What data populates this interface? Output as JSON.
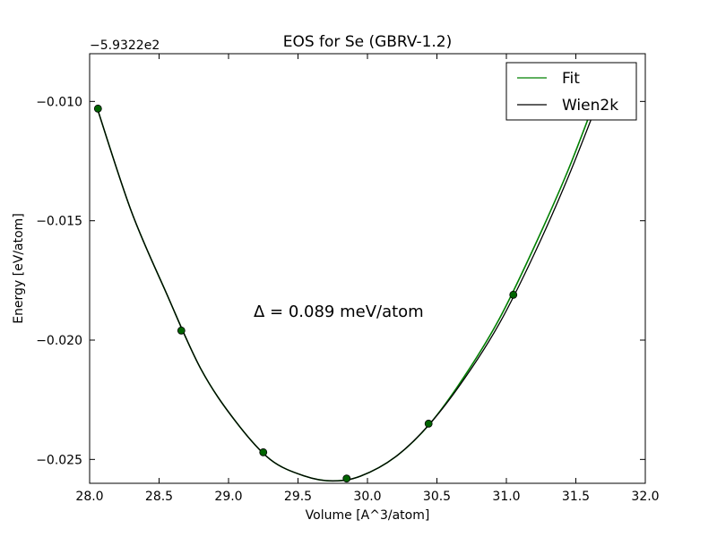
{
  "chart_data": {
    "type": "line",
    "title": "EOS for Se (GBRV-1.2)",
    "xlabel": "Volume [A^3/atom]",
    "ylabel": "Energy [eV/atom]",
    "offset_label": "−5.9322e2",
    "annotation": "Δ = 0.089 meV/atom",
    "xlim": [
      28.0,
      32.0
    ],
    "ylim": [
      -0.026,
      -0.008
    ],
    "xticks": [
      28.0,
      28.5,
      29.0,
      29.5,
      30.0,
      30.5,
      31.0,
      31.5,
      32.0
    ],
    "xtick_labels": [
      "28.0",
      "28.5",
      "29.0",
      "29.5",
      "30.0",
      "30.5",
      "31.0",
      "31.5",
      "32.0"
    ],
    "yticks": [
      -0.01,
      -0.015,
      -0.02,
      -0.025
    ],
    "ytick_labels": [
      "−0.010",
      "−0.015",
      "−0.020",
      "−0.025"
    ],
    "legend_position": "top-right",
    "grid": false,
    "series": [
      {
        "name": "Fit",
        "kind": "line",
        "color": "#008000",
        "x": [
          28.05,
          28.3,
          28.55,
          28.8,
          29.05,
          29.3,
          29.55,
          29.75,
          29.95,
          30.2,
          30.45,
          30.7,
          30.95,
          31.2,
          31.45,
          31.7
        ],
        "y": [
          -0.0102,
          -0.0146,
          -0.018,
          -0.0212,
          -0.0234,
          -0.025,
          -0.0257,
          -0.0259,
          -0.0257,
          -0.0249,
          -0.0235,
          -0.0215,
          -0.0191,
          -0.0161,
          -0.0128,
          -0.009
        ]
      },
      {
        "name": "Wien2k",
        "kind": "line",
        "color": "#000000",
        "x": [
          28.05,
          28.3,
          28.55,
          28.8,
          29.05,
          29.3,
          29.55,
          29.75,
          29.95,
          30.2,
          30.45,
          30.7,
          30.95,
          31.2,
          31.45,
          31.7
        ],
        "y": [
          -0.0102,
          -0.0146,
          -0.018,
          -0.0212,
          -0.0234,
          -0.025,
          -0.0257,
          -0.0259,
          -0.0257,
          -0.0249,
          -0.0235,
          -0.0216,
          -0.0193,
          -0.0164,
          -0.0131,
          -0.0094
        ]
      },
      {
        "kind": "scatter",
        "color": "#006400",
        "x": [
          28.06,
          28.66,
          29.25,
          29.85,
          30.44,
          31.05
        ],
        "y": [
          -0.0103,
          -0.0196,
          -0.0247,
          -0.0258,
          -0.0235,
          -0.0181
        ]
      }
    ]
  }
}
